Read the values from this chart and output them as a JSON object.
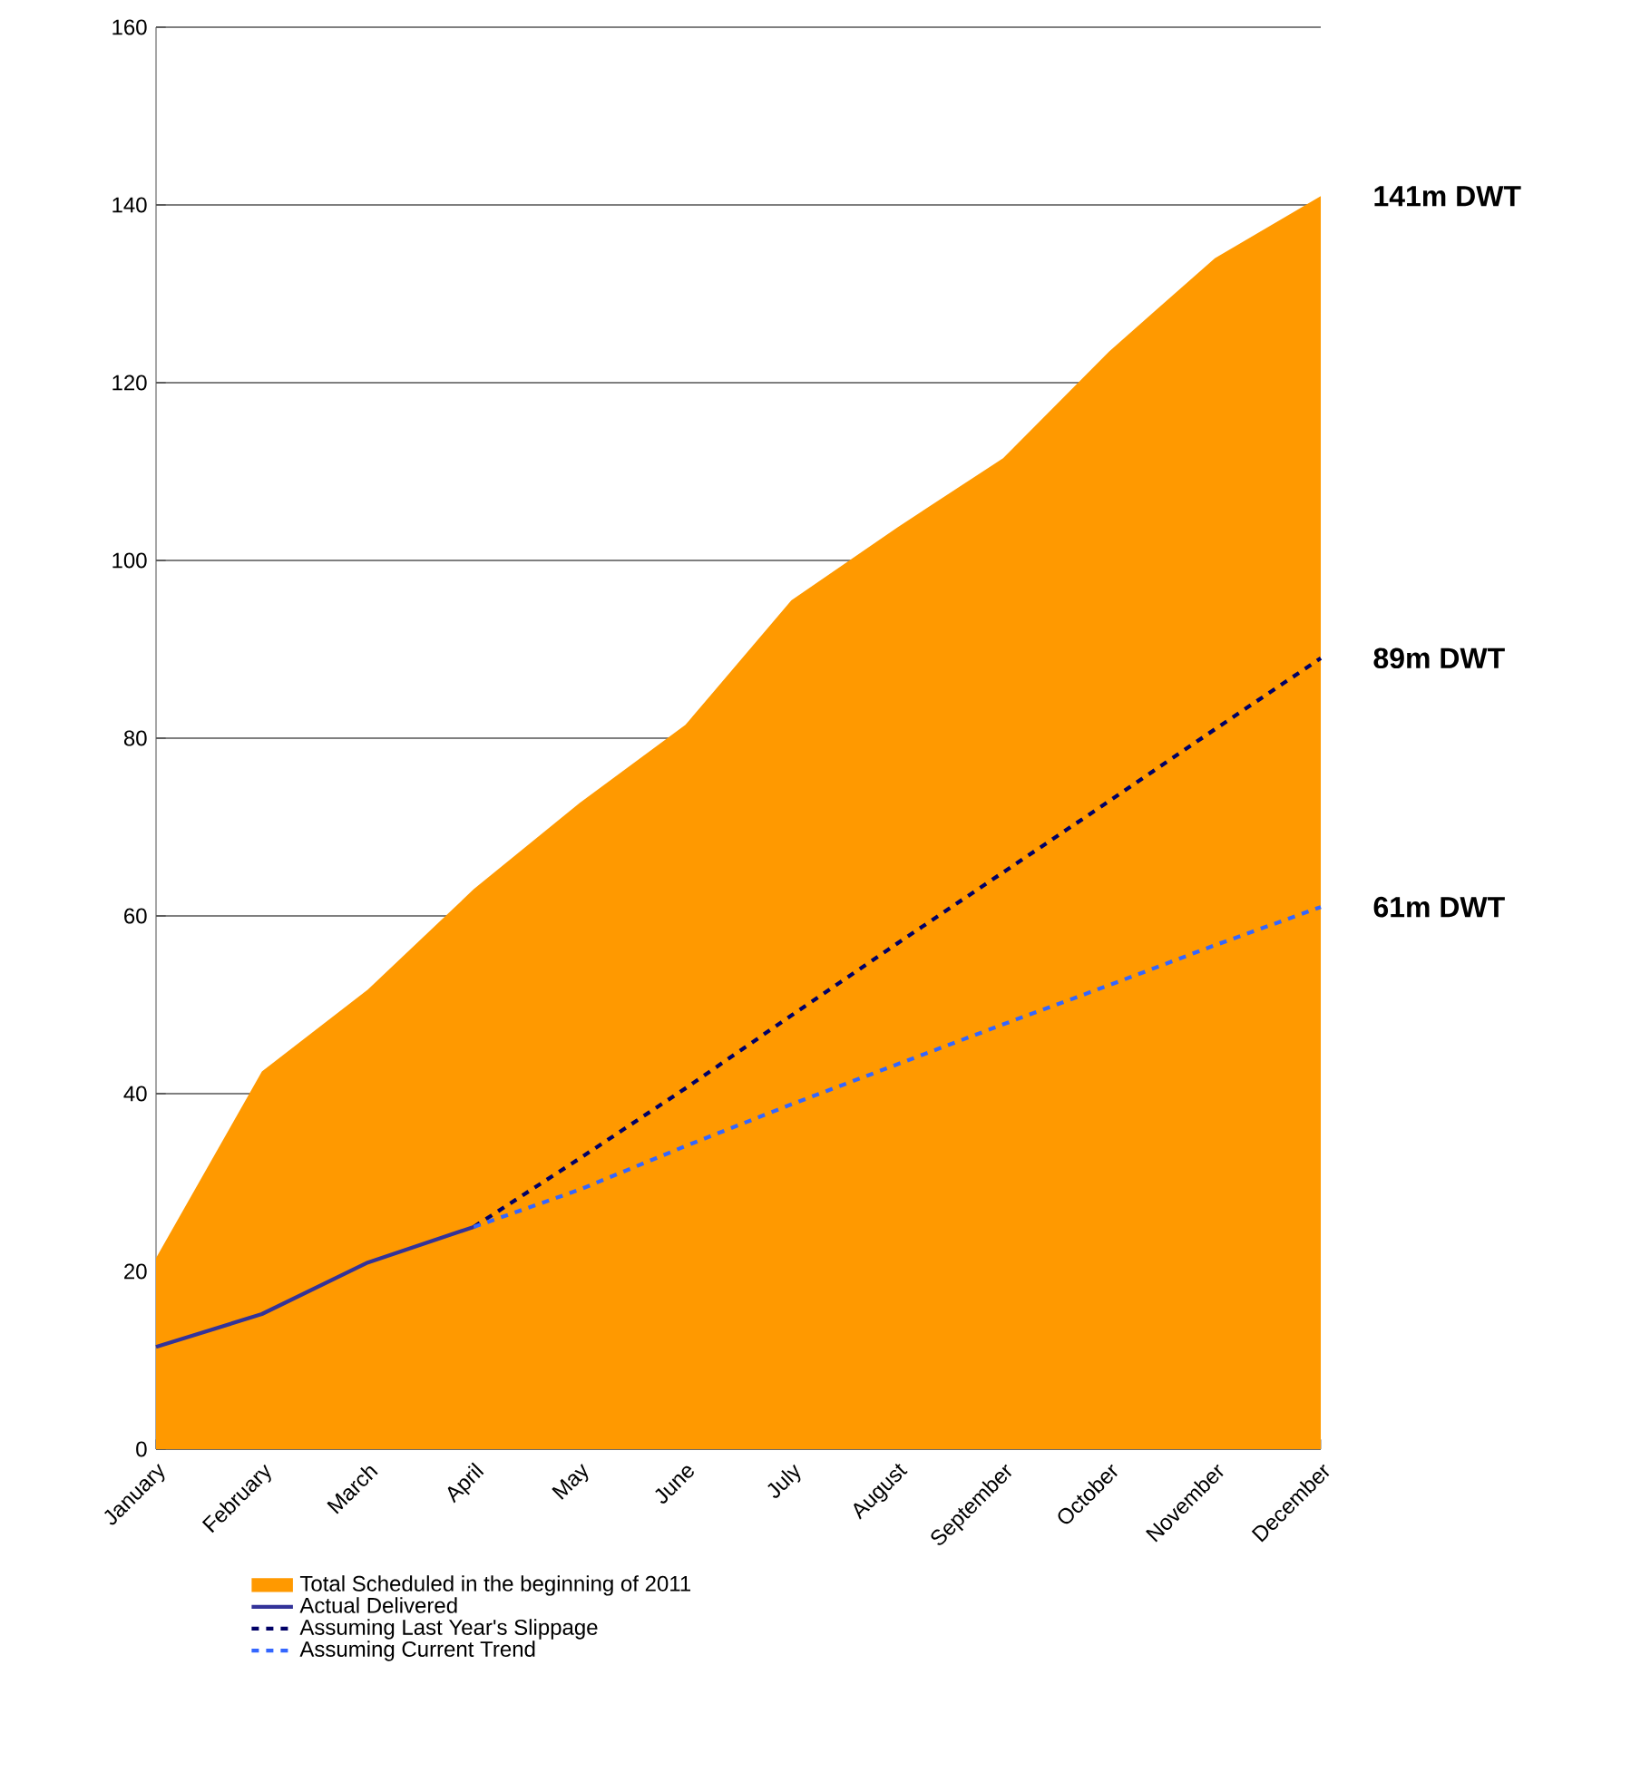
{
  "chart_data": {
    "type": "line",
    "categories": [
      "January",
      "February",
      "March",
      "April",
      "May",
      "June",
      "July",
      "August",
      "September",
      "October",
      "November",
      "December"
    ],
    "series": [
      {
        "name": "Total Scheduled in the beginning of 2011",
        "type": "area",
        "color": "#ff9900",
        "values": [
          21.5,
          42.5,
          51.7,
          63,
          72.7,
          81.5,
          95.5,
          103.7,
          111.5,
          123.5,
          134,
          141
        ]
      },
      {
        "name": "Actual Delivered",
        "type": "line",
        "color": "#333399",
        "line_style": "solid",
        "values": [
          11.5,
          15.2,
          21,
          25,
          null,
          null,
          null,
          null,
          null,
          null,
          null,
          null
        ]
      },
      {
        "name": "Assuming Last Year's Slippage",
        "type": "line",
        "color": "#000066",
        "line_style": "dashed",
        "values": [
          null,
          null,
          null,
          25,
          32.7,
          40.6,
          48.8,
          56.9,
          64.9,
          72.9,
          81,
          89
        ]
      },
      {
        "name": "Assuming Current Trend",
        "type": "line",
        "color": "#3366ff",
        "line_style": "dashed",
        "values": [
          null,
          null,
          null,
          25,
          29.2,
          34.1,
          38.8,
          43.3,
          47.8,
          52.2,
          56.7,
          61
        ]
      }
    ],
    "ylim": [
      0,
      160
    ],
    "yticks": [
      0,
      20,
      40,
      60,
      80,
      100,
      120,
      140,
      160
    ],
    "grid": "y",
    "legend": "bottom",
    "marker": "none",
    "annotations": [
      {
        "text": "141m DWT",
        "x": "December",
        "y": 141
      },
      {
        "text": "89m DWT",
        "x": "December",
        "y": 89
      },
      {
        "text": "61m DWT",
        "x": "December",
        "y": 61
      }
    ]
  }
}
